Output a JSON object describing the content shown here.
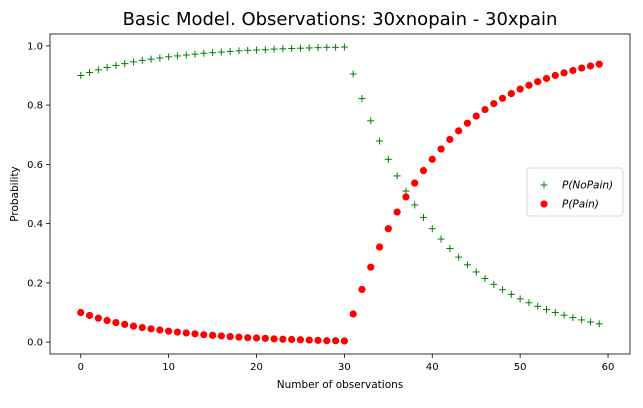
{
  "chart_data": {
    "type": "scatter",
    "title": "Basic Model. Observations: 30xnopain - 30xpain",
    "xlabel": "Number of observations",
    "ylabel": "Probability",
    "xlim": [
      -3.5,
      62.5
    ],
    "ylim": [
      -0.04,
      1.04
    ],
    "x_ticks": [
      0,
      10,
      20,
      30,
      40,
      50,
      60
    ],
    "y_ticks": [
      0.0,
      0.2,
      0.4,
      0.6,
      0.8,
      1.0
    ],
    "x_tick_labels": [
      "0",
      "10",
      "20",
      "30",
      "40",
      "50",
      "60"
    ],
    "y_tick_labels": [
      "0.0",
      "0.2",
      "0.4",
      "0.6",
      "0.8",
      "1.0"
    ],
    "grid": false,
    "legend_position": "center-right",
    "x": [
      0,
      1,
      2,
      3,
      4,
      5,
      6,
      7,
      8,
      9,
      10,
      11,
      12,
      13,
      14,
      15,
      16,
      17,
      18,
      19,
      20,
      21,
      22,
      23,
      24,
      25,
      26,
      27,
      28,
      29,
      30,
      31,
      32,
      33,
      34,
      35,
      36,
      37,
      38,
      39,
      40,
      41,
      42,
      43,
      44,
      45,
      46,
      47,
      48,
      49,
      50,
      51,
      52,
      53,
      54,
      55,
      56,
      57,
      58,
      59
    ],
    "series": [
      {
        "name": "P(NoPain)",
        "marker": "plus",
        "color": "#008000",
        "values": [
          0.9,
          0.91,
          0.919,
          0.927,
          0.934,
          0.94,
          0.946,
          0.951,
          0.955,
          0.959,
          0.963,
          0.966,
          0.969,
          0.972,
          0.975,
          0.977,
          0.979,
          0.981,
          0.983,
          0.985,
          0.986,
          0.987,
          0.989,
          0.99,
          0.991,
          0.992,
          0.993,
          0.994,
          0.995,
          0.995,
          0.996,
          0.905,
          0.822,
          0.747,
          0.679,
          0.617,
          0.561,
          0.51,
          0.463,
          0.421,
          0.383,
          0.348,
          0.316,
          0.287,
          0.261,
          0.237,
          0.215,
          0.195,
          0.177,
          0.161,
          0.146,
          0.133,
          0.121,
          0.11,
          0.1,
          0.091,
          0.083,
          0.075,
          0.068,
          0.062
        ]
      },
      {
        "name": "P(Pain)",
        "marker": "circle",
        "color": "#ff0000",
        "values": [
          0.1,
          0.09,
          0.081,
          0.073,
          0.066,
          0.06,
          0.054,
          0.049,
          0.045,
          0.041,
          0.037,
          0.034,
          0.031,
          0.028,
          0.025,
          0.023,
          0.021,
          0.019,
          0.017,
          0.015,
          0.014,
          0.013,
          0.011,
          0.01,
          0.009,
          0.008,
          0.007,
          0.006,
          0.005,
          0.005,
          0.004,
          0.095,
          0.178,
          0.253,
          0.321,
          0.383,
          0.439,
          0.49,
          0.537,
          0.579,
          0.617,
          0.652,
          0.684,
          0.713,
          0.739,
          0.763,
          0.785,
          0.805,
          0.823,
          0.839,
          0.854,
          0.867,
          0.879,
          0.89,
          0.9,
          0.909,
          0.917,
          0.925,
          0.932,
          0.938
        ]
      }
    ]
  }
}
